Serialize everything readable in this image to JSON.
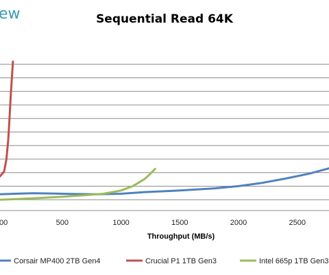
{
  "logo_text": "ew",
  "chart_data": {
    "type": "line",
    "title": "Sequential Read 64K",
    "xlabel": "Throughput (MB/s)",
    "ylabel": "",
    "xlim": [
      -30,
      2770
    ],
    "ylim": [
      0,
      300
    ],
    "x_ticks": [
      0,
      500,
      1000,
      1500,
      2000,
      2500
    ],
    "x_tick_labels": [
      "00",
      "500",
      "1000",
      "1500",
      "2000",
      "2500"
    ],
    "y_gridlines": [
      20,
      45,
      70,
      95,
      120,
      145,
      170,
      195,
      220,
      245,
      270
    ],
    "grid": true,
    "legend": "bottom",
    "series": [
      {
        "name": "Corsair MP400 2TB Gen4",
        "color": "#4f81bd",
        "points": [
          [
            -30,
            30
          ],
          [
            100,
            31
          ],
          [
            250,
            32
          ],
          [
            400,
            31.5
          ],
          [
            600,
            30.5
          ],
          [
            800,
            30
          ],
          [
            1000,
            31
          ],
          [
            1200,
            34
          ],
          [
            1500,
            37
          ],
          [
            1800,
            41
          ],
          [
            2000,
            45
          ],
          [
            2200,
            51
          ],
          [
            2400,
            59
          ],
          [
            2600,
            68
          ],
          [
            2770,
            78
          ]
        ]
      },
      {
        "name": "Crucial P1 1TB Gen3",
        "color": "#c0504d",
        "points": [
          [
            -30,
            63
          ],
          [
            5,
            72
          ],
          [
            25,
            95
          ],
          [
            40,
            130
          ],
          [
            52,
            175
          ],
          [
            62,
            215
          ],
          [
            70,
            240
          ],
          [
            76,
            262
          ],
          [
            80,
            275
          ]
        ]
      },
      {
        "name": "Intel 665p 1TB Gen3",
        "color": "#9bbb59",
        "points": [
          [
            -30,
            20
          ],
          [
            100,
            21
          ],
          [
            300,
            23
          ],
          [
            500,
            25.5
          ],
          [
            700,
            28.5
          ],
          [
            850,
            31
          ],
          [
            1000,
            37
          ],
          [
            1100,
            45
          ],
          [
            1200,
            58
          ],
          [
            1250,
            68
          ],
          [
            1290,
            77
          ]
        ]
      }
    ]
  }
}
